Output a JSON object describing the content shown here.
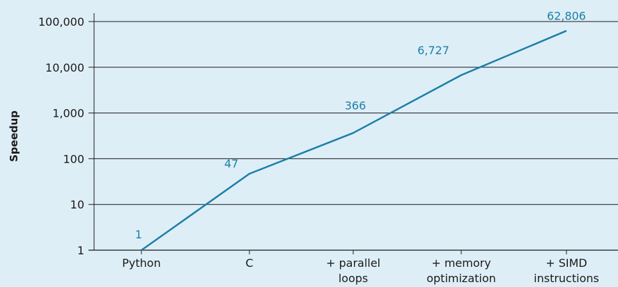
{
  "colors": {
    "background": "#deeef6",
    "line": "#1b7fa8",
    "data_label": "#1b7fa8",
    "grid": "#1a1a1a",
    "text": "#1a1a1a"
  },
  "chart_data": {
    "type": "line",
    "title": "",
    "xlabel": "",
    "ylabel": "Speedup",
    "y_scale": "log",
    "ylim": [
      1,
      100000
    ],
    "grid": "horizontal",
    "categories": [
      [
        "Python"
      ],
      [
        "C"
      ],
      [
        "+ parallel",
        "loops"
      ],
      [
        "+ memory",
        "optimization"
      ],
      [
        "+ SIMD",
        "instructions"
      ]
    ],
    "values": [
      1,
      47,
      366,
      6727,
      62806
    ],
    "data_labels": [
      "1",
      "47",
      "366",
      "6,727",
      "62,806"
    ],
    "y_ticks": [
      {
        "value": 1,
        "label": "1"
      },
      {
        "value": 10,
        "label": "10"
      },
      {
        "value": 100,
        "label": "100"
      },
      {
        "value": 1000,
        "label": "1,000"
      },
      {
        "value": 10000,
        "label": "10,000"
      },
      {
        "value": 100000,
        "label": "100,000"
      }
    ]
  }
}
